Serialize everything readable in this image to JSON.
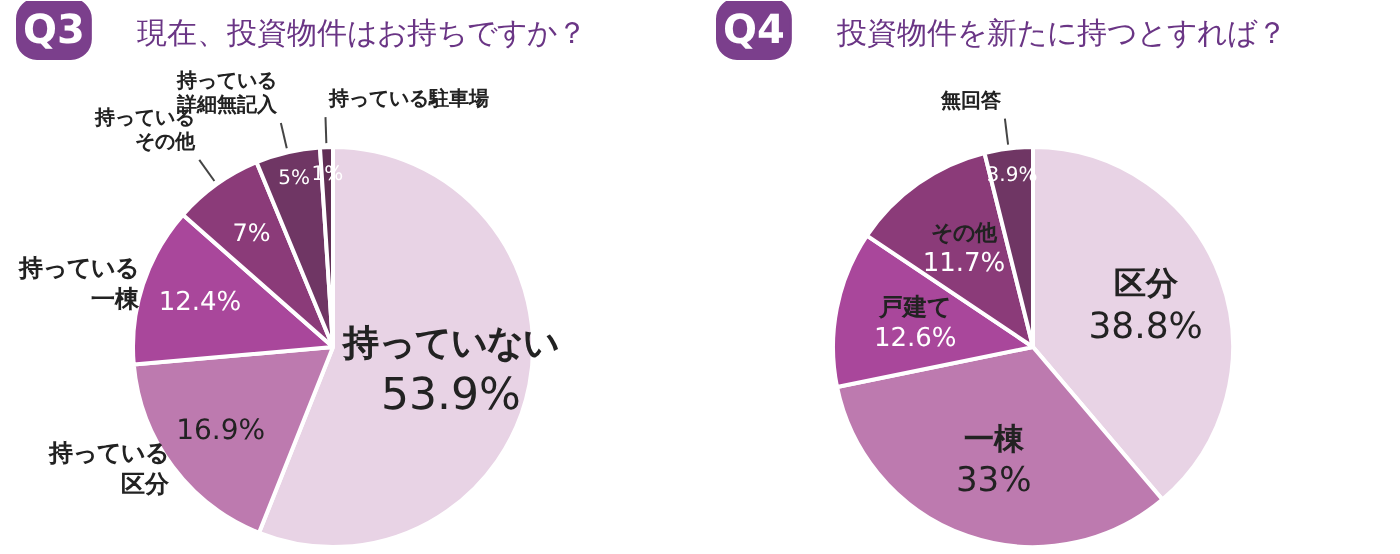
{
  "chart_data": [
    {
      "type": "pie",
      "title": "Q3",
      "subtitle": "現在、投資物件はお持ちですか？",
      "categories": [
        "持っていない",
        "持っている区分",
        "持っている一棟",
        "持っているその他",
        "持っている詳細無記入",
        "持っている駐車場"
      ],
      "values": [
        53.9,
        16.9,
        12.4,
        7,
        5,
        1
      ],
      "value_labels": [
        "53.9%",
        "16.9%",
        "12.4%",
        "7%",
        "5%",
        "1%"
      ],
      "colors": [
        "#e8d3e5",
        "#bd7aaf",
        "#a9479b",
        "#8b3b79",
        "#6f3664",
        "#5f2e54"
      ]
    },
    {
      "type": "pie",
      "title": "Q4",
      "subtitle": "投資物件を新たに持つとすれば？",
      "categories": [
        "区分",
        "一棟",
        "戸建て",
        "その他",
        "無回答"
      ],
      "values": [
        38.8,
        33,
        12.6,
        11.7,
        3.9
      ],
      "value_labels": [
        "38.8%",
        "33%",
        "12.6%",
        "11.7%",
        "3.9%"
      ],
      "colors": [
        "#e8d3e5",
        "#bd7aaf",
        "#a9479b",
        "#8b3b79",
        "#6f3664"
      ]
    }
  ]
}
